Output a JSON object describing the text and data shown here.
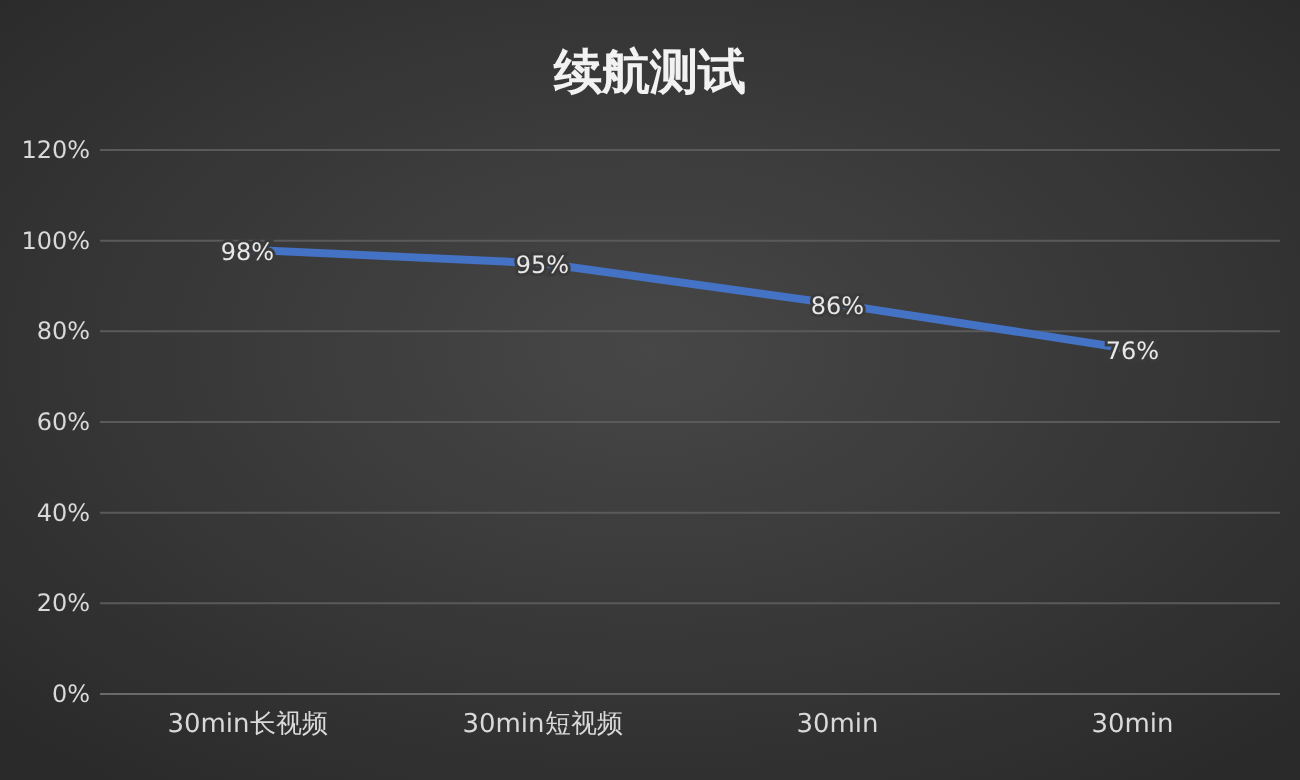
{
  "chart_data": {
    "type": "line",
    "title": "续航测试",
    "categories": [
      "30min长视频",
      "30min短视频",
      "30min",
      "30min"
    ],
    "series": [
      {
        "color": "#4472c4",
        "values": [
          98,
          95,
          86,
          76
        ],
        "value_labels": [
          "98%",
          "95%",
          "86%",
          "76%"
        ]
      }
    ],
    "ylim": [
      0,
      120
    ],
    "yticks": [
      {
        "value": 0,
        "label": "0%"
      },
      {
        "value": 20,
        "label": "20%"
      },
      {
        "value": 40,
        "label": "40%"
      },
      {
        "value": 60,
        "label": "60%"
      },
      {
        "value": 80,
        "label": "80%"
      },
      {
        "value": 100,
        "label": "100%"
      },
      {
        "value": 120,
        "label": "120%"
      }
    ],
    "grid": "y",
    "marker": "none",
    "line_style": "solid"
  }
}
